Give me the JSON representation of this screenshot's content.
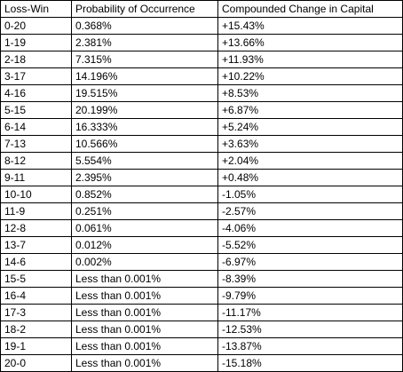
{
  "table": {
    "header": [
      "Loss-Win",
      "Probability of Occurrence",
      "Compounded Change in Capital"
    ],
    "rows": [
      [
        "0-20",
        "0.368%",
        "+15.43%"
      ],
      [
        "1-19",
        "2.381%",
        "+13.66%"
      ],
      [
        "2-18",
        "7.315%",
        "+11.93%"
      ],
      [
        "3-17",
        "14.196%",
        "+10.22%"
      ],
      [
        "4-16",
        "19.515%",
        "+8.53%"
      ],
      [
        "5-15",
        "20.199%",
        "+6.87%"
      ],
      [
        "6-14",
        "16.333%",
        "+5.24%"
      ],
      [
        "7-13",
        "10.566%",
        "+3.63%"
      ],
      [
        "8-12",
        "5.554%",
        "+2.04%"
      ],
      [
        "9-11",
        "2.395%",
        "+0.48%"
      ],
      [
        "10-10",
        "0.852%",
        "-1.05%"
      ],
      [
        "11-9",
        "0.251%",
        "-2.57%"
      ],
      [
        "12-8",
        "0.061%",
        "-4.06%"
      ],
      [
        "13-7",
        "0.012%",
        "-5.52%"
      ],
      [
        "14-6",
        "0.002%",
        "-6.97%"
      ],
      [
        "15-5",
        "Less than 0.001%",
        "-8.39%"
      ],
      [
        "16-4",
        "Less than 0.001%",
        "-9.79%"
      ],
      [
        "17-3",
        "Less than 0.001%",
        "-11.17%"
      ],
      [
        "18-2",
        "Less than 0.001%",
        "-12.53%"
      ],
      [
        "19-1",
        "Less than 0.001%",
        "-13.87%"
      ],
      [
        "20-0",
        "Less than 0.001%",
        "-15.18%"
      ]
    ]
  }
}
